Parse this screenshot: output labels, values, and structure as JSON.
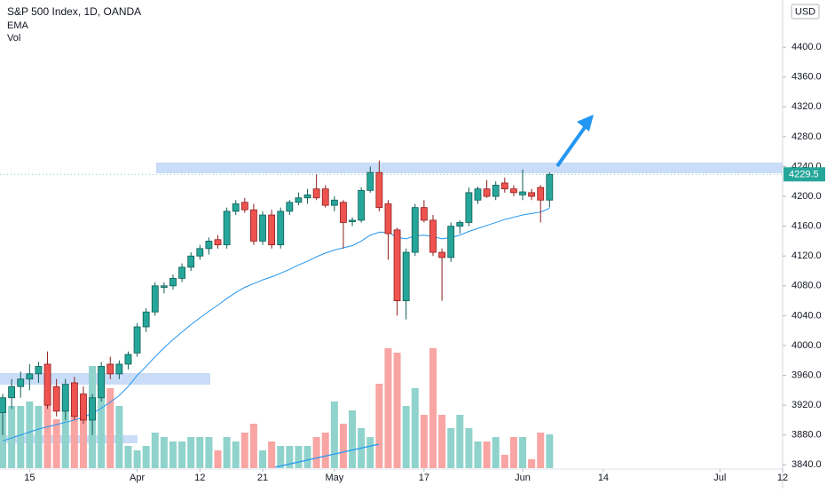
{
  "chart_data": {
    "type": "candlestick",
    "title": "S&P 500 Index, 1D, OANDA",
    "currency": "USD",
    "x": [
      0,
      1,
      2,
      3,
      4,
      5,
      6,
      7,
      8,
      9,
      10,
      11,
      12,
      13,
      14,
      15,
      16,
      17,
      18,
      19,
      20,
      21,
      22,
      23,
      24,
      25,
      26,
      27,
      28,
      29,
      30,
      31,
      32,
      33,
      34,
      35,
      36,
      37,
      38,
      39,
      40,
      41,
      42,
      43,
      44,
      45,
      46,
      47,
      48,
      49,
      50,
      51,
      52,
      53,
      54,
      55,
      56,
      57,
      58,
      59,
      60,
      61
    ],
    "open": [
      3910,
      3930,
      3945,
      3955,
      3962,
      3975,
      3945,
      3912,
      3950,
      3935,
      3900,
      3930,
      3975,
      3962,
      3975,
      3990,
      4025,
      4045,
      4078,
      4080,
      4090,
      4105,
      4120,
      4130,
      4142,
      4135,
      4180,
      4192,
      4182,
      4140,
      4175,
      4135,
      4180,
      4192,
      4198,
      4210,
      4210,
      4188,
      4192,
      4166,
      4168,
      4208,
      4232,
      4190,
      4155,
      4060,
      4125,
      4185,
      4168,
      4125,
      4118,
      4160,
      4165,
      4195,
      4210,
      4200,
      4218,
      4210,
      4202,
      4205,
      4212,
      4195
    ],
    "high": [
      3935,
      3955,
      3965,
      3975,
      3978,
      3992,
      3955,
      3955,
      3958,
      3945,
      3935,
      3978,
      3985,
      3980,
      3992,
      4030,
      4050,
      4085,
      4085,
      4095,
      4110,
      4125,
      4135,
      4145,
      4148,
      4185,
      4195,
      4198,
      4190,
      4180,
      4182,
      4185,
      4195,
      4205,
      4210,
      4230,
      4215,
      4200,
      4195,
      4172,
      4212,
      4240,
      4248,
      4195,
      4158,
      4130,
      4190,
      4195,
      4175,
      4130,
      4165,
      4168,
      4212,
      4213,
      4222,
      4220,
      4225,
      4215,
      4236,
      4210,
      4215,
      4232
    ],
    "low": [
      3880,
      3915,
      3930,
      3940,
      3950,
      3915,
      3905,
      3900,
      3900,
      3895,
      3880,
      3925,
      3955,
      3955,
      3968,
      3985,
      4018,
      4040,
      4070,
      4075,
      4085,
      4100,
      4115,
      4122,
      4130,
      4130,
      4175,
      4178,
      4135,
      4135,
      4130,
      4130,
      4175,
      4188,
      4190,
      4195,
      4185,
      4180,
      4130,
      4160,
      4165,
      4205,
      4180,
      4115,
      4040,
      4035,
      4120,
      4165,
      4120,
      4060,
      4112,
      4150,
      4160,
      4190,
      4198,
      4195,
      4205,
      4200,
      4195,
      4195,
      4165,
      4185
    ],
    "close": [
      3930,
      3945,
      3955,
      3962,
      3972,
      3920,
      3912,
      3948,
      3905,
      3900,
      3930,
      3972,
      3962,
      3975,
      3988,
      4025,
      4045,
      4080,
      4080,
      4090,
      4105,
      4120,
      4130,
      4140,
      4135,
      4180,
      4190,
      4182,
      4140,
      4175,
      4135,
      4180,
      4192,
      4198,
      4202,
      4198,
      4188,
      4195,
      4165,
      4168,
      4208,
      4232,
      4185,
      4150,
      4060,
      4125,
      4185,
      4168,
      4125,
      4118,
      4160,
      4165,
      4205,
      4210,
      4200,
      4215,
      4210,
      4205,
      4206,
      4200,
      4195,
      4229.5
    ],
    "up_color": "#26a69a",
    "down_color": "#ef5350",
    "ema": {
      "name": "EMA",
      "color": "#2196f3",
      "values": [
        3872,
        3876,
        3880,
        3884,
        3888,
        3891,
        3894,
        3897,
        3900,
        3904,
        3909,
        3916,
        3924,
        3933,
        3945,
        3960,
        3972,
        3985,
        3997,
        4008,
        4018,
        4028,
        4037,
        4046,
        4054,
        4063,
        4071,
        4078,
        4083,
        4088,
        4092,
        4097,
        4102,
        4108,
        4113,
        4119,
        4124,
        4128,
        4131,
        4134,
        4140,
        4148,
        4152,
        4152,
        4145,
        4143,
        4147,
        4148,
        4146,
        4143,
        4145,
        4148,
        4153,
        4157,
        4161,
        4165,
        4169,
        4172,
        4175,
        4177,
        4179,
        4184
      ]
    },
    "volume": {
      "name": "Vol",
      "up_color": "#8fd3cc",
      "down_color": "#f8a5a3",
      "lim": [
        0,
        140
      ],
      "values": [
        65,
        70,
        70,
        75,
        70,
        85,
        55,
        80,
        60,
        55,
        115,
        115,
        90,
        70,
        25,
        20,
        25,
        40,
        35,
        30,
        30,
        35,
        35,
        35,
        20,
        35,
        30,
        40,
        50,
        20,
        30,
        25,
        25,
        25,
        25,
        35,
        40,
        75,
        50,
        65,
        45,
        35,
        95,
        135,
        130,
        70,
        90,
        60,
        135,
        60,
        45,
        60,
        45,
        30,
        30,
        35,
        15,
        35,
        35,
        10,
        40,
        38
      ]
    },
    "xlim": [
      -0.3,
      87
    ],
    "xticks": [
      {
        "value": 3,
        "label": "15"
      },
      {
        "value": 15,
        "label": "Apr"
      },
      {
        "value": 22,
        "label": "12"
      },
      {
        "value": 29,
        "label": "21"
      },
      {
        "value": 37,
        "label": "May"
      },
      {
        "value": 47,
        "label": "17"
      },
      {
        "value": 58,
        "label": "Jun"
      },
      {
        "value": 67,
        "label": "14"
      },
      {
        "value": 80,
        "label": "Jul"
      },
      {
        "value": 87,
        "label": "12"
      }
    ],
    "ylim": [
      3808.2,
      4463.3
    ],
    "yticks": [
      {
        "value": 3840,
        "label": "3840.0"
      },
      {
        "value": 3880,
        "label": "3880.0"
      },
      {
        "value": 3920,
        "label": "3920.0"
      },
      {
        "value": 3960,
        "label": "3960.0"
      },
      {
        "value": 4000,
        "label": "4000.0"
      },
      {
        "value": 4040,
        "label": "4040.0"
      },
      {
        "value": 4080,
        "label": "4080.0"
      },
      {
        "value": 4120,
        "label": "4120.0"
      },
      {
        "value": 4160,
        "label": "4160.0"
      },
      {
        "value": 4200,
        "label": "4200.0"
      },
      {
        "value": 4240,
        "label": "4240.0"
      },
      {
        "value": 4280,
        "label": "4280.0"
      },
      {
        "value": 4320,
        "label": "4320.0"
      },
      {
        "value": 4360,
        "label": "4360.0"
      },
      {
        "value": 4400,
        "label": "4400.0"
      }
    ]
  }
}
